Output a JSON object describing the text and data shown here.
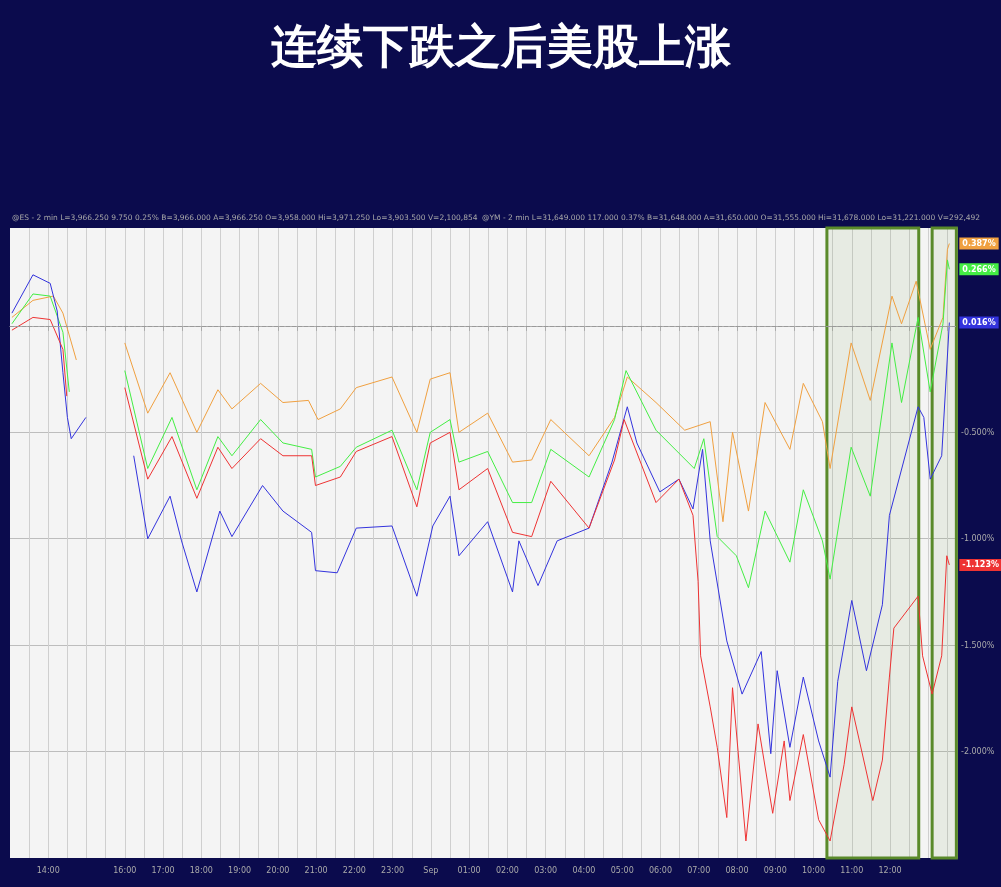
{
  "chart_data": {
    "type": "line",
    "title": "连续下跌之后美股上涨",
    "annotations": [
      "@ES - 2 min L=3,966.250 9.750 0.25% B=3,966.000 A=3,966.250 O=3,958.000 Hi=3,971.250 Lo=3,903.500 V=2,100,854",
      "@YM - 2 min L=31,649.000 117.000 0.37% B=31,648.000 A=31,650.000 O=31,555.000 Hi=31,678.000 Lo=31,221.000 V=292,492"
    ],
    "xlim": [
      "--08-31T13:00",
      "--09-01T13:45"
    ],
    "xticks": [
      {
        "value": "--08-31T13:30",
        "label": null
      },
      {
        "value": "--08-31T14:00",
        "label": "14:00"
      },
      {
        "value": "--08-31T14:30",
        "label": null
      },
      {
        "value": "--08-31T15:00",
        "label": null
      },
      {
        "value": "--08-31T15:30",
        "label": null
      },
      {
        "value": "--08-31T16:00",
        "label": "16:00"
      },
      {
        "value": "--08-31T16:30",
        "label": null
      },
      {
        "value": "--08-31T17:00",
        "label": "17:00"
      },
      {
        "value": "--08-31T17:30",
        "label": null
      },
      {
        "value": "--08-31T18:00",
        "label": "18:00"
      },
      {
        "value": "--08-31T18:30",
        "label": null
      },
      {
        "value": "--08-31T19:00",
        "label": "19:00"
      },
      {
        "value": "--08-31T19:30",
        "label": null
      },
      {
        "value": "--08-31T20:00",
        "label": "20:00"
      },
      {
        "value": "--08-31T20:30",
        "label": null
      },
      {
        "value": "--08-31T21:00",
        "label": "21:00"
      },
      {
        "value": "--08-31T21:30",
        "label": null
      },
      {
        "value": "--08-31T22:00",
        "label": "22:00"
      },
      {
        "value": "--08-31T22:30",
        "label": null
      },
      {
        "value": "--08-31T23:00",
        "label": "23:00"
      },
      {
        "value": "--08-31T23:30",
        "label": null
      },
      {
        "value": "--09-01T00:00",
        "label": "Sep"
      },
      {
        "value": "--09-01T00:30",
        "label": null
      },
      {
        "value": "--09-01T01:00",
        "label": "01:00"
      },
      {
        "value": "--09-01T01:30",
        "label": null
      },
      {
        "value": "--09-01T02:00",
        "label": "02:00"
      },
      {
        "value": "--09-01T02:30",
        "label": null
      },
      {
        "value": "--09-01T03:00",
        "label": "03:00"
      },
      {
        "value": "--09-01T03:30",
        "label": null
      },
      {
        "value": "--09-01T04:00",
        "label": "04:00"
      },
      {
        "value": "--09-01T04:30",
        "label": null
      },
      {
        "value": "--09-01T05:00",
        "label": "05:00"
      },
      {
        "value": "--09-01T05:30",
        "label": null
      },
      {
        "value": "--09-01T06:00",
        "label": "06:00"
      },
      {
        "value": "--09-01T06:30",
        "label": null
      },
      {
        "value": "--09-01T07:00",
        "label": "07:00"
      },
      {
        "value": "--09-01T07:30",
        "label": null
      },
      {
        "value": "--09-01T08:00",
        "label": "08:00"
      },
      {
        "value": "--09-01T08:30",
        "label": null
      },
      {
        "value": "--09-01T09:00",
        "label": "09:00"
      },
      {
        "value": "--09-01T09:30",
        "label": null
      },
      {
        "value": "--09-01T10:00",
        "label": "10:00"
      },
      {
        "value": "--09-01T10:30",
        "label": null
      },
      {
        "value": "--09-01T11:00",
        "label": "11:00"
      },
      {
        "value": "--09-01T11:30",
        "label": null
      },
      {
        "value": "--09-01T12:00",
        "label": "12:00"
      },
      {
        "value": "--09-01T12:30",
        "label": null
      },
      {
        "value": "--09-01T13:00",
        "label": null
      },
      {
        "value": "--09-01T13:30",
        "label": null
      }
    ],
    "ylim": [
      -2.5,
      0.46
    ],
    "yticks": [
      {
        "value": -2,
        "label": "-2.000%"
      },
      {
        "value": -1.5,
        "label": "-1.500%"
      },
      {
        "value": -1,
        "label": "-1.000%"
      },
      {
        "value": -0.5,
        "label": "-0.500%"
      }
    ],
    "grid": true,
    "ref_lines": [
      {
        "axis": "y",
        "value": 0,
        "color": "#999999",
        "line_style": "dashed"
      }
    ],
    "bands": [
      {
        "axis": "x",
        "from": "--09-01T10:21",
        "to": "--09-01T12:45",
        "color": "#5a8a2a"
      },
      {
        "axis": "x",
        "from": "--09-01T13:06",
        "to": "--09-01T13:44",
        "color": "#5a8a2a"
      }
    ],
    "series": [
      {
        "color": "#f0a040",
        "x": [
          "--08-31T13:03",
          "--08-31T13:36",
          "--08-31T14:08",
          "--08-31T14:23",
          "--08-31T14:44",
          "--08-31T15:30",
          "--08-31T16:00",
          "--08-31T16:36",
          "--08-31T17:11",
          "--08-31T17:53",
          "--08-31T18:26",
          "--08-31T18:48",
          "--08-31T19:33",
          "--08-31T20:08",
          "--08-31T20:48",
          "--08-31T21:03",
          "--08-31T21:38",
          "--08-31T22:03",
          "--08-31T22:59",
          "--08-31T23:38",
          "--08-31T23:59",
          "--09-01T00:30",
          "--09-01T00:44",
          "--09-01T01:29",
          "--09-01T02:08",
          "--09-01T02:38",
          "--09-01T03:08",
          "--09-01T04:08",
          "--09-01T04:48",
          "--09-01T05:08",
          "--09-01T05:53",
          "--09-01T06:38",
          "--09-01T07:18",
          "--09-01T07:38",
          "--09-01T07:53",
          "--09-01T08:18",
          "--09-01T08:44",
          "--09-01T09:23",
          "--09-01T09:44",
          "--09-01T10:14",
          "--09-01T10:26",
          "--09-01T10:59",
          "--09-01T11:29",
          "--09-01T12:03",
          "--09-01T12:18",
          "--09-01T12:41",
          "--09-01T13:03",
          "--09-01T13:23",
          "--09-01T13:30",
          "--09-01T13:33"
        ],
        "values": [
          0.04,
          0.12,
          0.14,
          0.06,
          -0.16,
          null,
          -0.08,
          -0.41,
          -0.22,
          -0.5,
          -0.3,
          -0.39,
          -0.27,
          -0.36,
          -0.35,
          -0.44,
          -0.39,
          -0.29,
          -0.24,
          -0.5,
          -0.25,
          -0.22,
          -0.5,
          -0.41,
          -0.64,
          -0.63,
          -0.44,
          -0.61,
          -0.43,
          -0.24,
          -0.36,
          -0.49,
          -0.45,
          -0.92,
          -0.5,
          -0.87,
          -0.36,
          -0.58,
          -0.27,
          -0.45,
          -0.67,
          -0.08,
          -0.35,
          0.14,
          0.01,
          0.21,
          -0.11,
          0.04,
          0.36,
          0.387
        ],
        "value_labels": [
          null,
          null,
          null,
          null,
          null,
          null,
          null,
          null,
          null,
          null,
          null,
          null,
          null,
          null,
          null,
          null,
          null,
          null,
          null,
          null,
          null,
          null,
          null,
          null,
          null,
          null,
          null,
          null,
          null,
          null,
          null,
          null,
          null,
          null,
          null,
          null,
          null,
          null,
          null,
          null,
          null,
          null,
          null,
          null,
          null,
          null,
          null,
          null,
          null,
          "0.387%"
        ]
      },
      {
        "color": "#44ee44",
        "x": [
          "--08-31T13:03",
          "--08-31T13:36",
          "--08-31T14:03",
          "--08-31T14:23",
          "--08-31T14:33",
          "--08-31T15:30",
          "--08-31T16:00",
          "--08-31T16:36",
          "--08-31T17:14",
          "--08-31T17:53",
          "--08-31T18:26",
          "--08-31T18:48",
          "--08-31T19:33",
          "--08-31T20:08",
          "--08-31T20:53",
          "--08-31T20:59",
          "--08-31T21:38",
          "--08-31T22:03",
          "--08-31T22:59",
          "--08-31T23:38",
          "--08-31T23:59",
          "--09-01T00:30",
          "--09-01T00:44",
          "--09-01T01:29",
          "--09-01T02:08",
          "--09-01T02:38",
          "--09-01T03:08",
          "--09-01T04:08",
          "--09-01T04:48",
          "--09-01T05:06",
          "--09-01T05:53",
          "--09-01T06:53",
          "--09-01T07:08",
          "--09-01T07:29",
          "--09-01T07:59",
          "--09-01T08:18",
          "--09-01T08:44",
          "--09-01T09:23",
          "--09-01T09:44",
          "--09-01T10:14",
          "--09-01T10:26",
          "--09-01T10:59",
          "--09-01T11:29",
          "--09-01T12:03",
          "--09-01T12:18",
          "--09-01T12:44",
          "--09-01T13:03",
          "--09-01T13:23",
          "--09-01T13:30",
          "--09-01T13:33"
        ],
        "values": [
          0.01,
          0.15,
          0.14,
          -0.03,
          -0.31,
          null,
          -0.21,
          -0.67,
          -0.43,
          -0.77,
          -0.52,
          -0.61,
          -0.44,
          -0.55,
          -0.58,
          -0.71,
          -0.66,
          -0.57,
          -0.49,
          -0.77,
          -0.5,
          -0.44,
          -0.64,
          -0.59,
          -0.83,
          -0.83,
          -0.58,
          -0.71,
          -0.44,
          -0.21,
          -0.49,
          -0.67,
          -0.53,
          -0.99,
          -1.08,
          -1.23,
          -0.87,
          -1.11,
          -0.77,
          -1.01,
          -1.19,
          -0.57,
          -0.8,
          -0.08,
          -0.36,
          0.04,
          -0.31,
          0.01,
          0.31,
          0.266
        ],
        "value_labels": [
          null,
          null,
          null,
          null,
          null,
          null,
          null,
          null,
          null,
          null,
          null,
          null,
          null,
          null,
          null,
          null,
          null,
          null,
          null,
          null,
          null,
          null,
          null,
          null,
          null,
          null,
          null,
          null,
          null,
          null,
          null,
          null,
          null,
          null,
          null,
          null,
          null,
          null,
          null,
          null,
          null,
          null,
          null,
          null,
          null,
          null,
          null,
          null,
          null,
          "0.266%"
        ]
      },
      {
        "color": "#3333dd",
        "x": [
          "--08-31T13:03",
          "--08-31T13:36",
          "--08-31T14:03",
          "--08-31T14:14",
          "--08-31T14:23",
          "--08-31T14:30",
          "--08-31T14:36",
          "--08-31T14:59",
          "--08-31T15:30",
          "--08-31T16:14",
          "--08-31T16:36",
          "--08-31T17:11",
          "--08-31T17:29",
          "--08-31T17:53",
          "--08-31T18:29",
          "--08-31T18:48",
          "--08-31T19:36",
          "--08-31T20:08",
          "--08-31T20:53",
          "--08-31T20:59",
          "--08-31T21:33",
          "--08-31T22:03",
          "--08-31T22:59",
          "--08-31T23:38",
          "--09-01T00:03",
          "--09-01T00:30",
          "--09-01T00:44",
          "--09-01T01:29",
          "--09-01T02:08",
          "--09-01T02:18",
          "--09-01T02:48",
          "--09-01T03:18",
          "--09-01T04:08",
          "--09-01T04:44",
          "--09-01T05:08",
          "--09-01T05:23",
          "--09-01T05:59",
          "--09-01T06:29",
          "--09-01T06:51",
          "--09-01T07:06",
          "--09-01T07:18",
          "--09-01T07:44",
          "--09-01T08:08",
          "--09-01T08:38",
          "--09-01T08:53",
          "--09-01T09:03",
          "--09-01T09:23",
          "--09-01T09:44",
          "--09-01T10:08",
          "--09-01T10:26",
          "--09-01T10:38",
          "--09-01T11:00",
          "--09-01T11:23",
          "--09-01T11:48",
          "--09-01T11:59",
          "--09-01T12:44",
          "--09-01T12:53",
          "--09-01T13:03",
          "--09-01T13:21",
          "--09-01T13:33"
        ],
        "values": [
          0.06,
          0.24,
          0.2,
          0.07,
          -0.22,
          -0.43,
          -0.53,
          -0.43,
          null,
          -0.61,
          -1.0,
          -0.8,
          -1.01,
          -1.25,
          -0.87,
          -0.99,
          -0.75,
          -0.87,
          -0.97,
          -1.15,
          -1.16,
          -0.95,
          -0.94,
          -1.27,
          -0.94,
          -0.8,
          -1.08,
          -0.92,
          -1.25,
          -1.01,
          -1.22,
          -1.01,
          -0.95,
          -0.64,
          -0.38,
          -0.55,
          -0.78,
          -0.72,
          -0.86,
          -0.58,
          -1.01,
          -1.48,
          -1.73,
          -1.53,
          -2.01,
          -1.62,
          -1.98,
          -1.65,
          -1.95,
          -2.12,
          -1.67,
          -1.29,
          -1.62,
          -1.31,
          -0.89,
          -0.38,
          -0.43,
          -0.72,
          -0.61,
          0.016
        ],
        "value_labels": [
          null,
          null,
          null,
          null,
          null,
          null,
          null,
          null,
          null,
          null,
          null,
          null,
          null,
          null,
          null,
          null,
          null,
          null,
          null,
          null,
          null,
          null,
          null,
          null,
          null,
          null,
          null,
          null,
          null,
          null,
          null,
          null,
          null,
          null,
          null,
          null,
          null,
          null,
          null,
          null,
          null,
          null,
          null,
          null,
          null,
          null,
          null,
          null,
          null,
          null,
          null,
          null,
          null,
          null,
          null,
          null,
          null,
          null,
          null,
          "0.016%"
        ]
      },
      {
        "color": "#ee3333",
        "x": [
          "--08-31T13:03",
          "--08-31T13:36",
          "--08-31T14:03",
          "--08-31T14:23",
          "--08-31T14:29",
          "--08-31T15:30",
          "--08-31T16:00",
          "--08-31T16:36",
          "--08-31T17:14",
          "--08-31T17:53",
          "--08-31T18:26",
          "--08-31T18:48",
          "--08-31T19:33",
          "--08-31T20:08",
          "--08-31T20:53",
          "--08-31T20:59",
          "--08-31T21:38",
          "--08-31T22:03",
          "--08-31T22:59",
          "--08-31T23:38",
          "--08-31T23:59",
          "--09-01T00:30",
          "--09-01T00:44",
          "--09-01T01:29",
          "--09-01T02:08",
          "--09-01T02:38",
          "--09-01T03:08",
          "--09-01T04:08",
          "--09-01T04:48",
          "--09-01T05:03",
          "--09-01T05:53",
          "--09-01T06:29",
          "--09-01T06:51",
          "--09-01T06:59",
          "--09-01T07:03",
          "--09-01T07:18",
          "--09-01T07:29",
          "--09-01T07:44",
          "--09-01T07:53",
          "--09-01T08:14",
          "--09-01T08:33",
          "--09-01T08:56",
          "--09-01T09:14",
          "--09-01T09:23",
          "--09-01T09:44",
          "--09-01T10:08",
          "--09-01T10:26",
          "--09-01T10:48",
          "--09-01T11:00",
          "--09-01T11:33",
          "--09-01T11:48",
          "--09-01T11:59",
          "--09-01T12:06",
          "--09-01T12:44",
          "--09-01T12:51",
          "--09-01T13:06",
          "--09-01T13:21",
          "--09-01T13:29",
          "--09-01T13:33"
        ],
        "values": [
          -0.02,
          0.04,
          0.03,
          -0.11,
          -0.33,
          null,
          -0.29,
          -0.72,
          -0.52,
          -0.81,
          -0.57,
          -0.67,
          -0.53,
          -0.61,
          -0.61,
          -0.75,
          -0.71,
          -0.59,
          -0.52,
          -0.85,
          -0.55,
          -0.5,
          -0.77,
          -0.67,
          -0.97,
          -0.99,
          -0.73,
          -0.95,
          -0.63,
          -0.44,
          -0.83,
          -0.72,
          -0.89,
          -1.2,
          -1.55,
          -1.79,
          -1.98,
          -2.31,
          -1.7,
          -2.42,
          -1.87,
          -2.29,
          -1.95,
          -2.23,
          -1.92,
          -2.32,
          -2.42,
          -2.06,
          -1.79,
          -2.23,
          -2.04,
          -1.65,
          -1.42,
          -1.27,
          -1.55,
          -1.73,
          -1.55,
          -1.08,
          -1.123
        ],
        "value_labels": [
          null,
          null,
          null,
          null,
          null,
          null,
          null,
          null,
          null,
          null,
          null,
          null,
          null,
          null,
          null,
          null,
          null,
          null,
          null,
          null,
          null,
          null,
          null,
          null,
          null,
          null,
          null,
          null,
          null,
          null,
          null,
          null,
          null,
          null,
          null,
          null,
          null,
          null,
          null,
          null,
          null,
          null,
          null,
          null,
          null,
          null,
          null,
          null,
          null,
          null,
          null,
          null,
          null,
          null,
          null,
          null,
          null,
          null,
          "-1.123%"
        ]
      }
    ]
  }
}
